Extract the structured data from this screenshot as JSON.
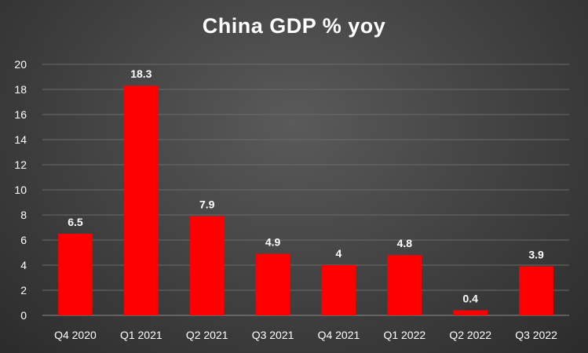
{
  "chart_data": {
    "type": "bar",
    "title": "China GDP % yoy",
    "xlabel": "",
    "ylabel": "",
    "categories": [
      "Q4 2020",
      "Q1 2021",
      "Q2 2021",
      "Q3 2021",
      "Q4 2021",
      "Q1 2022",
      "Q2 2022",
      "Q3 2022"
    ],
    "values": [
      6.5,
      18.3,
      7.9,
      4.9,
      4,
      4.8,
      0.4,
      3.9
    ],
    "data_labels": [
      "6.5",
      "18.3",
      "7.9",
      "4.9",
      "4",
      "4.8",
      "0.4",
      "3.9"
    ],
    "ylim": [
      0,
      20
    ],
    "y_ticks": [
      "0",
      "2",
      "4",
      "6",
      "8",
      "10",
      "12",
      "14",
      "16",
      "18",
      "20"
    ],
    "grid": true,
    "legend": "none",
    "bar_color": "#ff0000",
    "background_color": "#404040"
  }
}
